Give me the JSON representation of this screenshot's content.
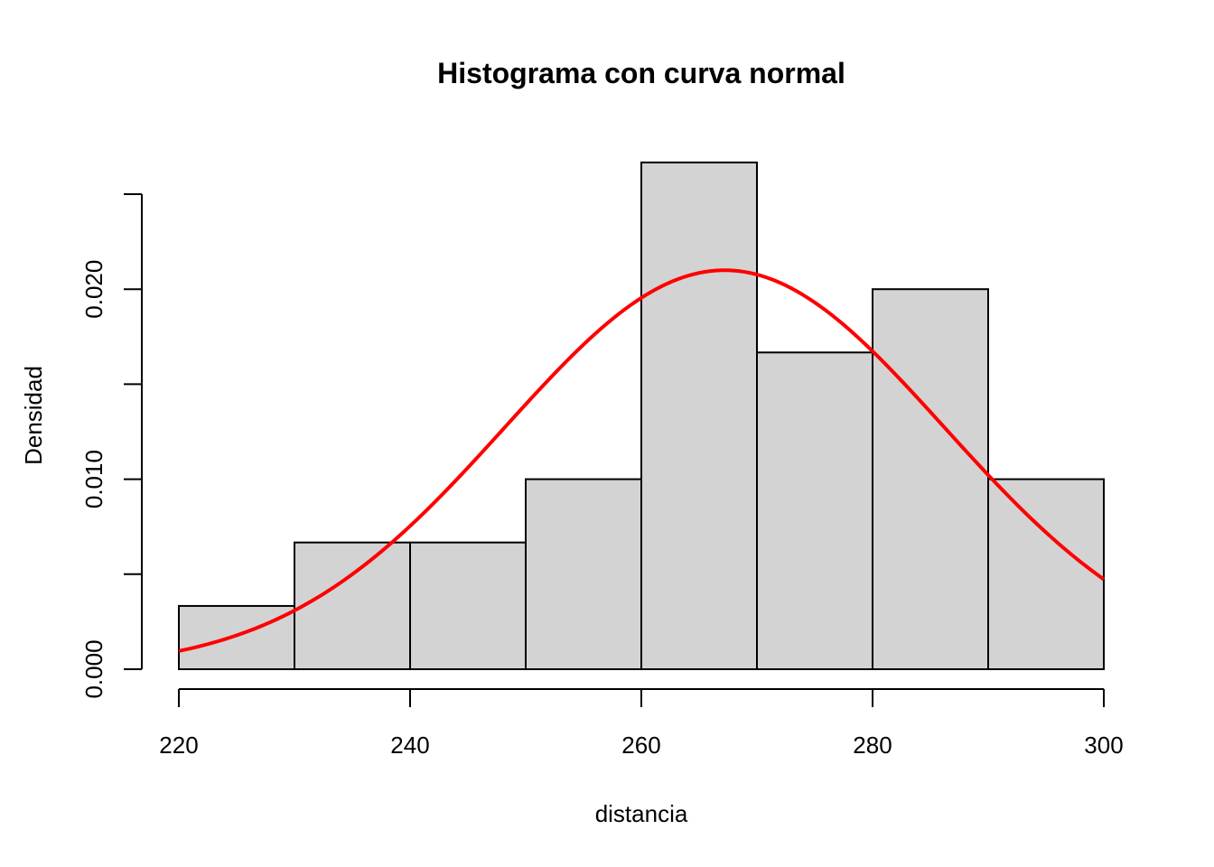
{
  "chart_data": {
    "type": "bar",
    "title": "Histograma con curva normal",
    "xlabel": "distancia",
    "ylabel": "Densidad",
    "bins": [
      {
        "from": 220,
        "to": 230,
        "density": 0.00333
      },
      {
        "from": 230,
        "to": 240,
        "density": 0.00667
      },
      {
        "from": 240,
        "to": 250,
        "density": 0.00667
      },
      {
        "from": 250,
        "to": 260,
        "density": 0.01
      },
      {
        "from": 260,
        "to": 270,
        "density": 0.02667
      },
      {
        "from": 270,
        "to": 280,
        "density": 0.01667
      },
      {
        "from": 280,
        "to": 290,
        "density": 0.02
      },
      {
        "from": 290,
        "to": 300,
        "density": 0.01
      }
    ],
    "normal_curve": {
      "mean": 267.2,
      "sd": 19.0,
      "color": "#ff0000",
      "x_range": [
        220,
        300
      ]
    },
    "xlim": [
      220,
      300
    ],
    "ylim": [
      0,
      0.025
    ],
    "x_ticks": [
      220,
      240,
      260,
      280,
      300
    ],
    "x_tick_labels": [
      "220",
      "240",
      "260",
      "280",
      "300"
    ],
    "y_ticks": [
      0,
      0.005,
      0.01,
      0.015,
      0.02,
      0.025
    ],
    "y_tick_labels": [
      "0.000",
      "",
      "0.010",
      "",
      "0.020",
      ""
    ],
    "bar_color": "#d3d3d3",
    "grid": false,
    "legend": "none"
  }
}
